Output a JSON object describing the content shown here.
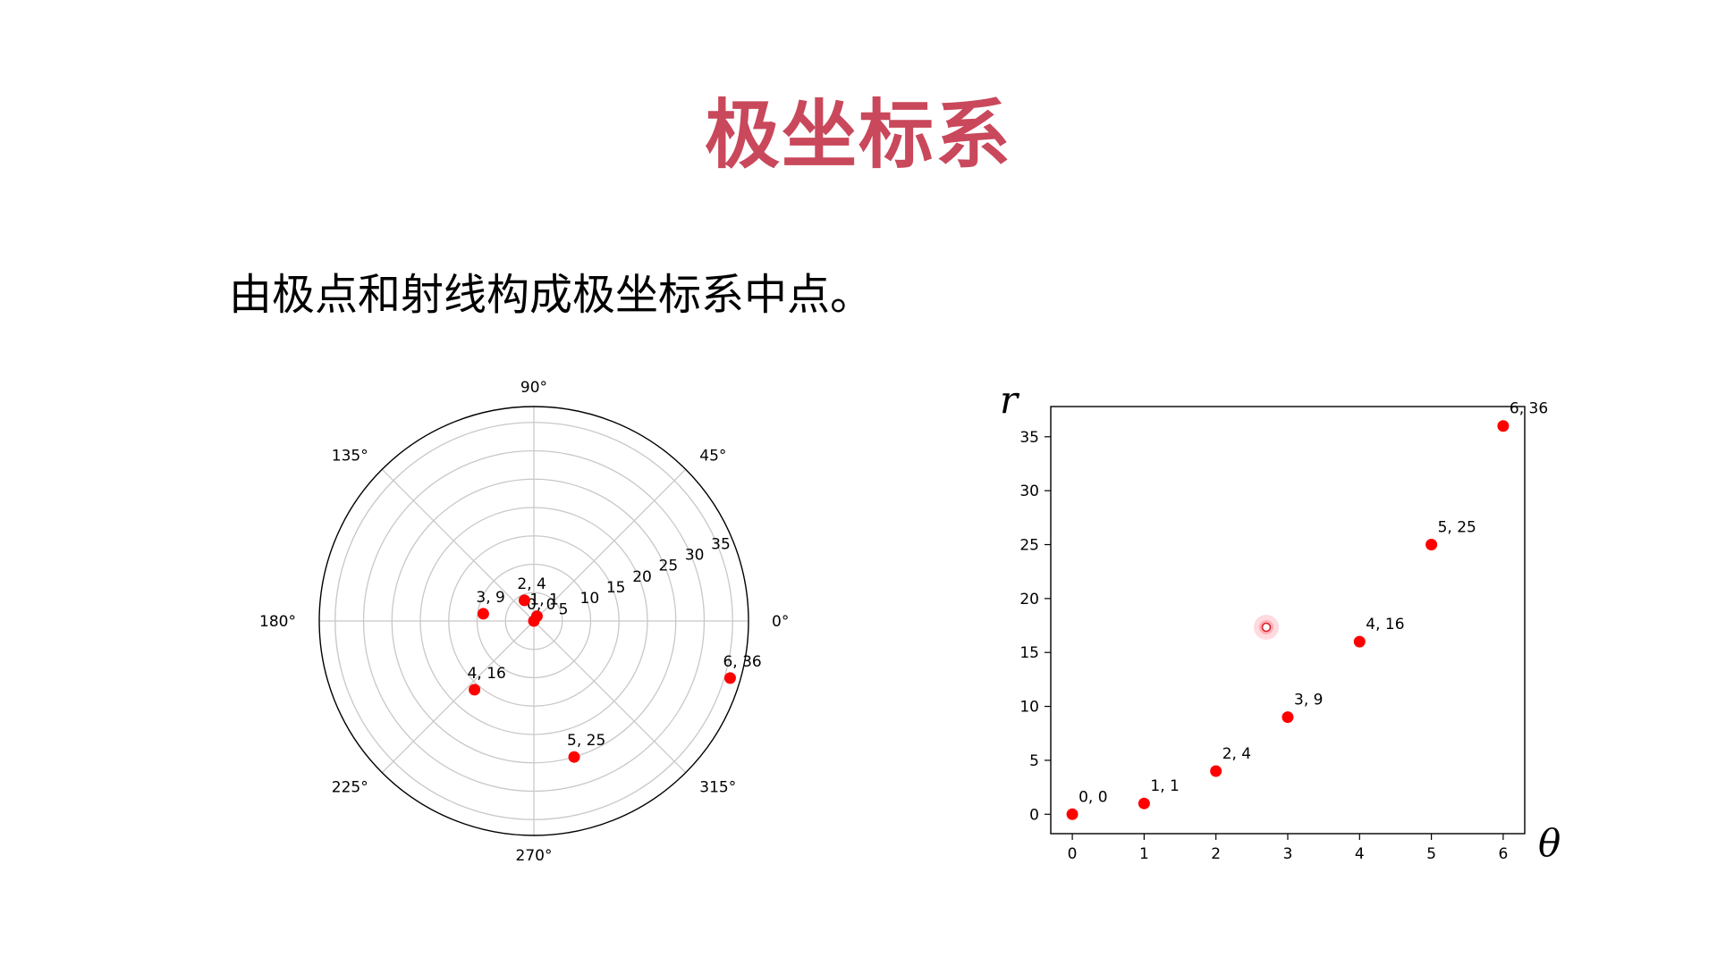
{
  "slide": {
    "title": "极坐标系",
    "subtitle": "由极点和射线构成极坐标系中点。",
    "title_color": "#c9485b"
  },
  "chart_data": [
    {
      "type": "scatter",
      "projection": "polar",
      "theta_unit": "radians",
      "points": [
        {
          "theta": 0,
          "r": 0,
          "label": "0, 0"
        },
        {
          "theta": 1,
          "r": 1,
          "label": "1, 1"
        },
        {
          "theta": 2,
          "r": 4,
          "label": "2, 4"
        },
        {
          "theta": 3,
          "r": 9,
          "label": "3, 9"
        },
        {
          "theta": 4,
          "r": 16,
          "label": "4, 16"
        },
        {
          "theta": 5,
          "r": 25,
          "label": "5, 25"
        },
        {
          "theta": 6,
          "r": 36,
          "label": "6, 36"
        }
      ],
      "angle_ticks": [
        "0°",
        "45°",
        "90°",
        "135°",
        "180°",
        "225°",
        "270°",
        "315°"
      ],
      "radial_ticks": [
        5,
        10,
        15,
        20,
        25,
        30,
        35
      ],
      "rlim": [
        0,
        37.8
      ],
      "grid": true,
      "marker_color": "#ff0000"
    },
    {
      "type": "scatter",
      "x": [
        0,
        1,
        2,
        3,
        4,
        5,
        6
      ],
      "y": [
        0,
        1,
        4,
        9,
        16,
        25,
        36
      ],
      "labels": [
        "0, 0",
        "1, 1",
        "2, 4",
        "3, 9",
        "4, 16",
        "5, 25",
        "6, 36"
      ],
      "xlabel": "θ",
      "ylabel": "r",
      "xlim": [
        -0.3,
        6.3
      ],
      "ylim": [
        -1.8,
        37.8
      ],
      "xticks": [
        0,
        1,
        2,
        3,
        4,
        5,
        6
      ],
      "yticks": [
        0,
        5,
        10,
        15,
        20,
        25,
        30,
        35
      ],
      "grid": false,
      "marker_color": "#ff0000"
    }
  ]
}
